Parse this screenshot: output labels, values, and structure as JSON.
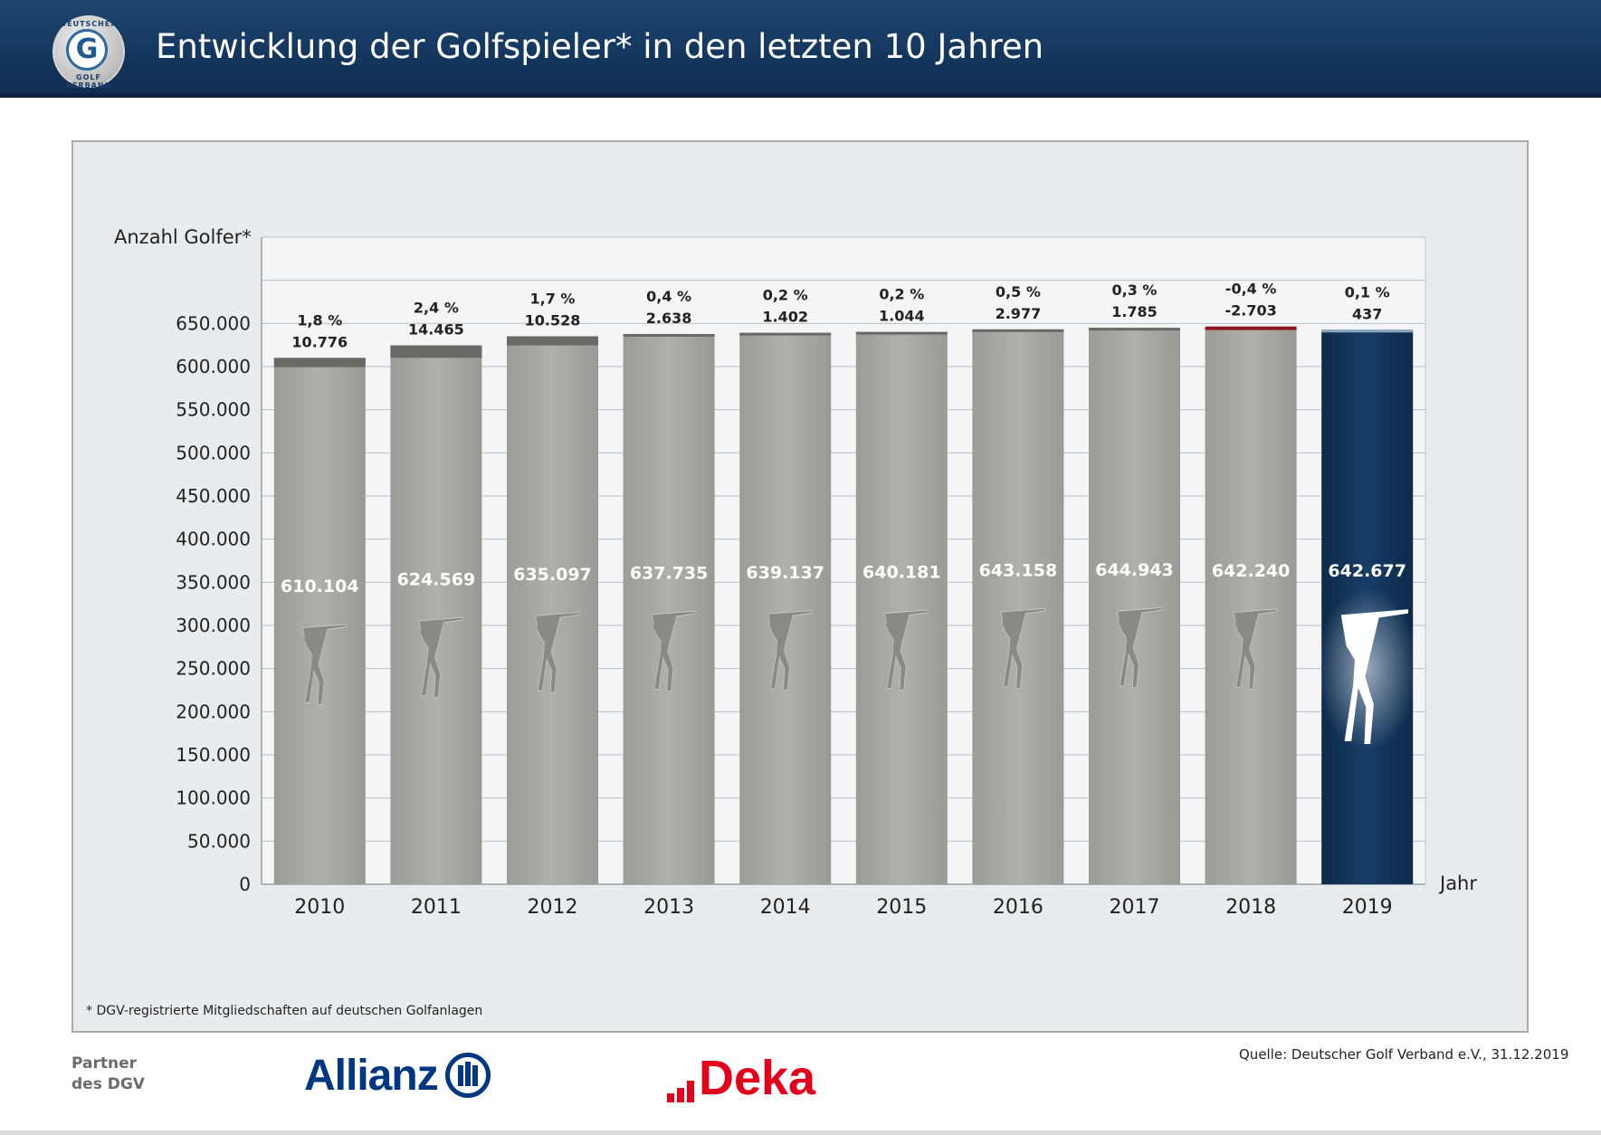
{
  "header": {
    "title": "Entwicklung der Golfspieler* in den letzten 10 Jahren",
    "logo_text_top": "DEUTSCHER",
    "logo_text_bottom": "GOLF VERBAND",
    "logo_letter": "G"
  },
  "chart_data": {
    "type": "bar",
    "title": "",
    "ylabel": "Anzahl Golfer*",
    "xlabel": "Jahr",
    "ylim": [
      0,
      750000
    ],
    "yticks": [
      0,
      50000,
      100000,
      150000,
      200000,
      250000,
      300000,
      350000,
      400000,
      450000,
      500000,
      550000,
      600000,
      650000
    ],
    "ytick_labels": [
      "0",
      "50.000",
      "100.000",
      "150.000",
      "200.000",
      "250.000",
      "300.000",
      "350.000",
      "400.000",
      "450.000",
      "500.000",
      "550.000",
      "600.000",
      "650.000"
    ],
    "grid": true,
    "categories": [
      "2010",
      "2011",
      "2012",
      "2013",
      "2014",
      "2015",
      "2016",
      "2017",
      "2018",
      "2019"
    ],
    "values": [
      610104,
      624569,
      635097,
      637735,
      639137,
      640181,
      643158,
      644943,
      642240,
      642677
    ],
    "value_labels": [
      "610.104",
      "624.569",
      "635.097",
      "637.735",
      "639.137",
      "640.181",
      "643.158",
      "644.943",
      "642.240",
      "642.677"
    ],
    "change_abs": [
      10776,
      14465,
      10528,
      2638,
      1402,
      1044,
      2977,
      1785,
      -2703,
      437
    ],
    "change_abs_labels": [
      "10.776",
      "14.465",
      "10.528",
      "2.638",
      "1.402",
      "1.044",
      "2.977",
      "1.785",
      "-2.703",
      "437"
    ],
    "change_pct_labels": [
      "1,8 %",
      "2,4 %",
      "1,7 %",
      "0,4 %",
      "0,2 %",
      "0,2 %",
      "0,5 %",
      "0,3 %",
      "-0,4 %",
      "0,1 %"
    ],
    "highlight_category": "2019",
    "colors": {
      "bar": "#a6a6a0",
      "bar_highlight": "#0f2f52",
      "increase": "#6a6a64",
      "decrease": "#8c1520",
      "grid": "#b9c0c6",
      "panel_bg": "#e9ecee"
    }
  },
  "footer": {
    "footnote": "*  DGV-registrierte Mitgliedschaften auf deutschen Golfanlagen",
    "partner_line1": "Partner",
    "partner_line2": "des DGV",
    "allianz": "Allianz",
    "deka": "Deka",
    "source": "Quelle: Deutscher Golf Verband e.V., 31.12.2019"
  }
}
